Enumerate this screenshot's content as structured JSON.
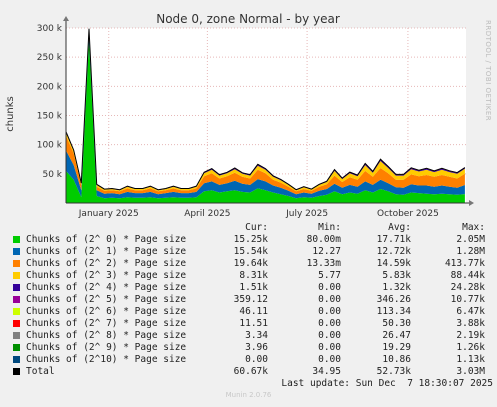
{
  "chart_data": {
    "type": "area",
    "title": "Node 0, zone Normal - by year",
    "ylabel": "chunks",
    "ylim": [
      0,
      300000
    ],
    "yticks": [
      {
        "value": 50000,
        "label": "50 k"
      },
      {
        "value": 100000,
        "label": "100 k"
      },
      {
        "value": 150000,
        "label": "150 k"
      },
      {
        "value": 200000,
        "label": "200 k"
      },
      {
        "value": 250000,
        "label": "250 k"
      },
      {
        "value": 300000,
        "label": "300 k"
      }
    ],
    "xlim": [
      "2024-12-07",
      "2025-12-07"
    ],
    "xticks": [
      {
        "date": "2025-01-15",
        "label": "January 2025"
      },
      {
        "date": "2025-04-15",
        "label": "April 2025"
      },
      {
        "date": "2025-07-15",
        "label": "July 2025"
      },
      {
        "date": "2025-10-15",
        "label": "October 2025"
      }
    ],
    "grid": true,
    "side_label": "RRDTOOL / TOBI OETIKER",
    "x": [
      "2024-12-07",
      "2024-12-14",
      "2024-12-21",
      "2024-12-28",
      "2025-01-04",
      "2025-01-11",
      "2025-01-18",
      "2025-01-25",
      "2025-02-01",
      "2025-02-08",
      "2025-02-15",
      "2025-02-22",
      "2025-03-01",
      "2025-03-08",
      "2025-03-15",
      "2025-03-22",
      "2025-03-29",
      "2025-04-05",
      "2025-04-12",
      "2025-04-19",
      "2025-04-26",
      "2025-05-03",
      "2025-05-10",
      "2025-05-17",
      "2025-05-24",
      "2025-05-31",
      "2025-06-07",
      "2025-06-14",
      "2025-06-21",
      "2025-06-28",
      "2025-07-05",
      "2025-07-12",
      "2025-07-19",
      "2025-07-26",
      "2025-08-02",
      "2025-08-09",
      "2025-08-16",
      "2025-08-23",
      "2025-08-30",
      "2025-09-06",
      "2025-09-13",
      "2025-09-20",
      "2025-09-27",
      "2025-10-04",
      "2025-10-11",
      "2025-10-18",
      "2025-10-25",
      "2025-11-01",
      "2025-11-08",
      "2025-11-15",
      "2025-11-22",
      "2025-11-29",
      "2025-12-06"
    ],
    "series": [
      {
        "name": "Chunks of (2^ 0) * Page size",
        "color": "#00cc00",
        "values": [
          55000,
          40000,
          10000,
          280000,
          12000,
          8000,
          9000,
          8000,
          10000,
          9000,
          9000,
          10000,
          8000,
          9000,
          10000,
          9000,
          9000,
          10000,
          20000,
          22000,
          18000,
          20000,
          22000,
          19000,
          18000,
          25000,
          22000,
          18000,
          15000,
          12000,
          8000,
          10000,
          9000,
          12000,
          14000,
          20000,
          15000,
          18000,
          16000,
          22000,
          18000,
          24000,
          20000,
          15000,
          14000,
          18000,
          17000,
          16000,
          15000,
          16000,
          15000,
          14000,
          15250
        ]
      },
      {
        "name": "Chunks of (2^ 1) * Page size",
        "color": "#0066b3",
        "values": [
          35000,
          25000,
          12000,
          10000,
          10000,
          8000,
          8000,
          7000,
          9000,
          8000,
          8000,
          9000,
          7000,
          8000,
          9000,
          8000,
          8000,
          9000,
          14000,
          15000,
          13000,
          14000,
          16000,
          14000,
          13000,
          16000,
          15000,
          12000,
          11000,
          9000,
          7000,
          8000,
          7000,
          9000,
          10000,
          13000,
          11000,
          13000,
          12000,
          15000,
          13000,
          16000,
          14000,
          12000,
          12000,
          14000,
          13000,
          14000,
          13000,
          14000,
          13000,
          12000,
          15540
        ]
      },
      {
        "name": "Chunks of (2^ 2) * Page size",
        "color": "#ff8000",
        "values": [
          25000,
          20000,
          8000,
          6000,
          6000,
          5000,
          5000,
          5000,
          6000,
          5000,
          5000,
          6000,
          5000,
          5000,
          6000,
          5000,
          5000,
          6000,
          12000,
          14000,
          11000,
          12000,
          14000,
          12000,
          11000,
          16000,
          14000,
          10000,
          9000,
          7000,
          5000,
          6000,
          5000,
          7000,
          8000,
          14000,
          10000,
          13000,
          12000,
          18000,
          14000,
          20000,
          17000,
          13000,
          14000,
          17000,
          16000,
          18000,
          17000,
          18000,
          17000,
          16000,
          19640
        ]
      },
      {
        "name": "Chunks of (2^ 3) * Page size",
        "color": "#ffcc00",
        "values": [
          5000,
          4000,
          3000,
          2000,
          3000,
          2000,
          2000,
          2000,
          3000,
          2000,
          2000,
          3000,
          2000,
          2000,
          3000,
          2000,
          2000,
          3000,
          5000,
          6000,
          5000,
          5000,
          6000,
          5000,
          5000,
          7000,
          6000,
          5000,
          4000,
          3000,
          2000,
          3000,
          2000,
          3000,
          4000,
          8000,
          5000,
          7000,
          6000,
          10000,
          7000,
          12000,
          9000,
          7000,
          7000,
          9000,
          8000,
          9000,
          8000,
          9000,
          8000,
          8000,
          8310
        ]
      },
      {
        "name": "Chunks of (2^ 4) * Page size",
        "color": "#330099",
        "values": [
          1500,
          1200,
          800,
          600,
          700,
          600,
          600,
          500,
          700,
          600,
          600,
          700,
          500,
          600,
          700,
          600,
          600,
          700,
          1200,
          1400,
          1100,
          1200,
          1400,
          1200,
          1100,
          1600,
          1400,
          1100,
          1000,
          800,
          600,
          700,
          600,
          800,
          900,
          1600,
          1100,
          1400,
          1300,
          2000,
          1500,
          2200,
          1800,
          1400,
          1400,
          1700,
          1600,
          1700,
          1600,
          1700,
          1600,
          1500,
          1510
        ]
      },
      {
        "name": "Chunks of (2^ 5) * Page size",
        "color": "#990099",
        "values": [
          400,
          300,
          200,
          150,
          200,
          150,
          150,
          150,
          200,
          150,
          150,
          200,
          150,
          150,
          200,
          150,
          150,
          200,
          300,
          350,
          300,
          300,
          350,
          300,
          300,
          400,
          350,
          300,
          250,
          200,
          150,
          200,
          150,
          200,
          250,
          400,
          300,
          350,
          330,
          500,
          380,
          550,
          450,
          350,
          350,
          430,
          400,
          430,
          400,
          430,
          400,
          380,
          359.12
        ]
      },
      {
        "name": "Chunks of (2^ 6) * Page size",
        "color": "#ccff00",
        "values": [
          150,
          120,
          80,
          60,
          70,
          60,
          60,
          50,
          70,
          60,
          60,
          70,
          50,
          60,
          70,
          60,
          60,
          70,
          110,
          130,
          100,
          110,
          130,
          110,
          100,
          140,
          130,
          100,
          90,
          70,
          60,
          70,
          60,
          70,
          80,
          130,
          100,
          120,
          110,
          170,
          130,
          190,
          150,
          120,
          120,
          140,
          130,
          140,
          130,
          140,
          130,
          120,
          46.11
        ]
      },
      {
        "name": "Chunks of (2^ 7) * Page size",
        "color": "#ff0000",
        "values": [
          60,
          50,
          30,
          20,
          30,
          20,
          20,
          20,
          30,
          20,
          20,
          30,
          20,
          20,
          30,
          20,
          20,
          30,
          50,
          60,
          50,
          50,
          60,
          50,
          50,
          70,
          60,
          50,
          40,
          30,
          20,
          30,
          20,
          30,
          40,
          60,
          50,
          60,
          55,
          80,
          60,
          90,
          70,
          55,
          55,
          65,
          60,
          65,
          60,
          65,
          60,
          55,
          11.51
        ]
      },
      {
        "name": "Chunks of (2^ 8) * Page size",
        "color": "#808080",
        "values": [
          30,
          25,
          15,
          10,
          15,
          10,
          10,
          10,
          15,
          10,
          10,
          15,
          10,
          10,
          15,
          10,
          10,
          15,
          25,
          30,
          25,
          25,
          30,
          25,
          25,
          35,
          30,
          25,
          20,
          15,
          10,
          15,
          10,
          15,
          20,
          30,
          25,
          30,
          28,
          40,
          30,
          45,
          35,
          28,
          28,
          33,
          30,
          33,
          30,
          33,
          30,
          28,
          3.34
        ]
      },
      {
        "name": "Chunks of (2^ 9) * Page size",
        "color": "#008f00",
        "values": [
          20,
          18,
          10,
          8,
          10,
          8,
          8,
          8,
          10,
          8,
          8,
          10,
          8,
          8,
          10,
          8,
          8,
          10,
          18,
          20,
          18,
          18,
          20,
          18,
          18,
          24,
          20,
          18,
          15,
          10,
          8,
          10,
          8,
          10,
          15,
          22,
          18,
          20,
          19,
          28,
          22,
          30,
          25,
          20,
          20,
          24,
          22,
          24,
          22,
          24,
          22,
          20,
          3.96
        ]
      },
      {
        "name": "Chunks of (2^10) * Page size",
        "color": "#00487d",
        "values": [
          10,
          9,
          5,
          4,
          5,
          4,
          4,
          4,
          5,
          4,
          4,
          5,
          4,
          4,
          5,
          4,
          4,
          5,
          9,
          10,
          9,
          9,
          10,
          9,
          9,
          12,
          10,
          9,
          8,
          5,
          4,
          5,
          4,
          5,
          8,
          11,
          9,
          10,
          10,
          14,
          11,
          15,
          13,
          10,
          10,
          12,
          11,
          12,
          11,
          12,
          11,
          10,
          0
        ]
      }
    ],
    "total_color": "#000000"
  },
  "legend": {
    "headers": [
      "Cur:",
      "Min:",
      "Avg:",
      "Max:"
    ],
    "rows": [
      {
        "name": "Chunks of (2^ 0) * Page size",
        "color": "#00cc00",
        "cur": "15.25k",
        "min": "80.00m",
        "avg": "17.71k",
        "max": "2.05M"
      },
      {
        "name": "Chunks of (2^ 1) * Page size",
        "color": "#0066b3",
        "cur": "15.54k",
        "min": "12.27",
        "avg": "12.72k",
        "max": "1.28M"
      },
      {
        "name": "Chunks of (2^ 2) * Page size",
        "color": "#ff8000",
        "cur": "19.64k",
        "min": "13.33m",
        "avg": "14.59k",
        "max": "413.77k"
      },
      {
        "name": "Chunks of (2^ 3) * Page size",
        "color": "#ffcc00",
        "cur": "8.31k",
        "min": "5.77",
        "avg": "5.83k",
        "max": "88.44k"
      },
      {
        "name": "Chunks of (2^ 4) * Page size",
        "color": "#330099",
        "cur": "1.51k",
        "min": "0.00",
        "avg": "1.32k",
        "max": "24.28k"
      },
      {
        "name": "Chunks of (2^ 5) * Page size",
        "color": "#990099",
        "cur": "359.12",
        "min": "0.00",
        "avg": "346.26",
        "max": "10.77k"
      },
      {
        "name": "Chunks of (2^ 6) * Page size",
        "color": "#ccff00",
        "cur": "46.11",
        "min": "0.00",
        "avg": "113.34",
        "max": "6.47k"
      },
      {
        "name": "Chunks of (2^ 7) * Page size",
        "color": "#ff0000",
        "cur": "11.51",
        "min": "0.00",
        "avg": "50.30",
        "max": "3.88k"
      },
      {
        "name": "Chunks of (2^ 8) * Page size",
        "color": "#808080",
        "cur": "3.34",
        "min": "0.00",
        "avg": "26.47",
        "max": "2.19k"
      },
      {
        "name": "Chunks of (2^ 9) * Page size",
        "color": "#008f00",
        "cur": "3.96",
        "min": "0.00",
        "avg": "19.29",
        "max": "1.26k"
      },
      {
        "name": "Chunks of (2^10) * Page size",
        "color": "#00487d",
        "cur": "0.00",
        "min": "0.00",
        "avg": "10.86",
        "max": "1.13k"
      },
      {
        "name": "Total",
        "color": "#000000",
        "cur": "60.67k",
        "min": "34.95",
        "avg": "52.73k",
        "max": "3.03M"
      }
    ]
  },
  "last_update": "Last update: Sun Dec  7 18:30:07 2025",
  "footer": "Munin 2.0.76"
}
